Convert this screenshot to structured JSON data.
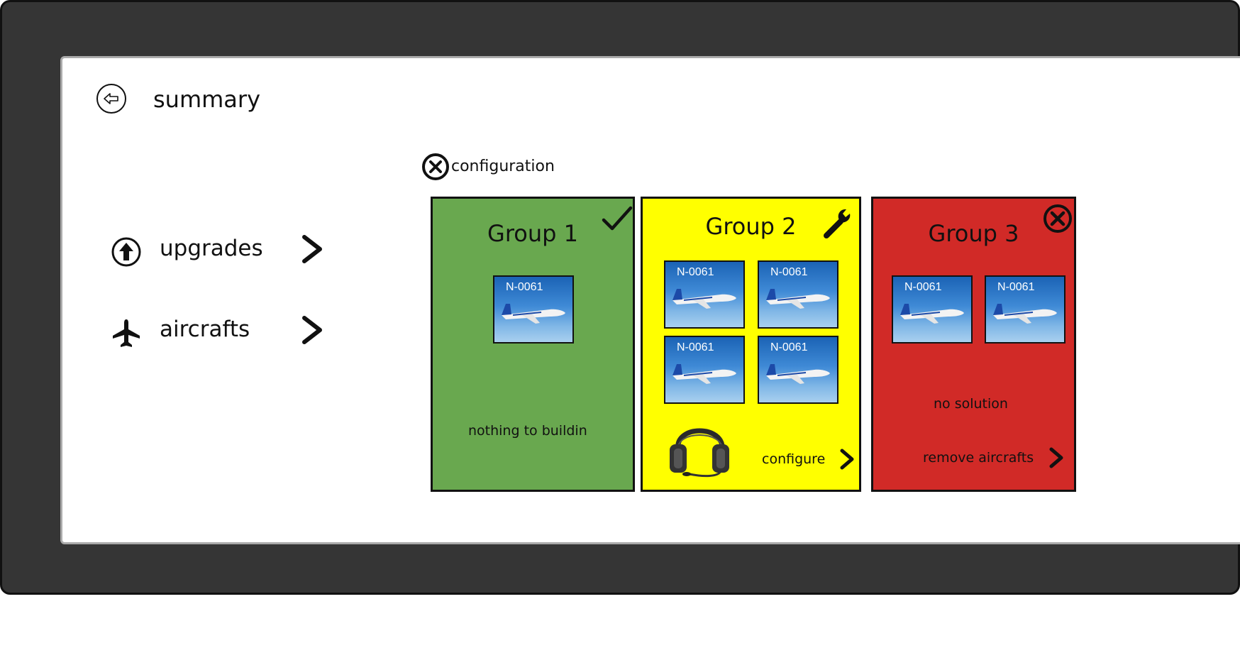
{
  "header": {
    "title": "summary"
  },
  "nav": {
    "items": [
      {
        "label": "upgrades",
        "icon": "arrow-up-circle-icon"
      },
      {
        "label": "aircrafts",
        "icon": "airplane-icon"
      }
    ]
  },
  "configuration": {
    "label": "configuration",
    "icon": "close-circle-icon"
  },
  "groups": [
    {
      "title": "Group 1",
      "status_icon": "checkmark-icon",
      "color": "#69a84f",
      "aircraft": [
        "N-0061"
      ],
      "footer": "nothing to buildin"
    },
    {
      "title": "Group 2",
      "status_icon": "wrench-icon",
      "color": "#ffff00",
      "aircraft": [
        "N-0061",
        "N-0061",
        "N-0061",
        "N-0061"
      ],
      "accessory_icon": "headset-icon",
      "action": "configure"
    },
    {
      "title": "Group 3",
      "status_icon": "close-circle-icon",
      "color": "#d12a27",
      "aircraft": [
        "N-0061",
        "N-0061"
      ],
      "footer": "no solution",
      "action": "remove aircrafts"
    }
  ]
}
